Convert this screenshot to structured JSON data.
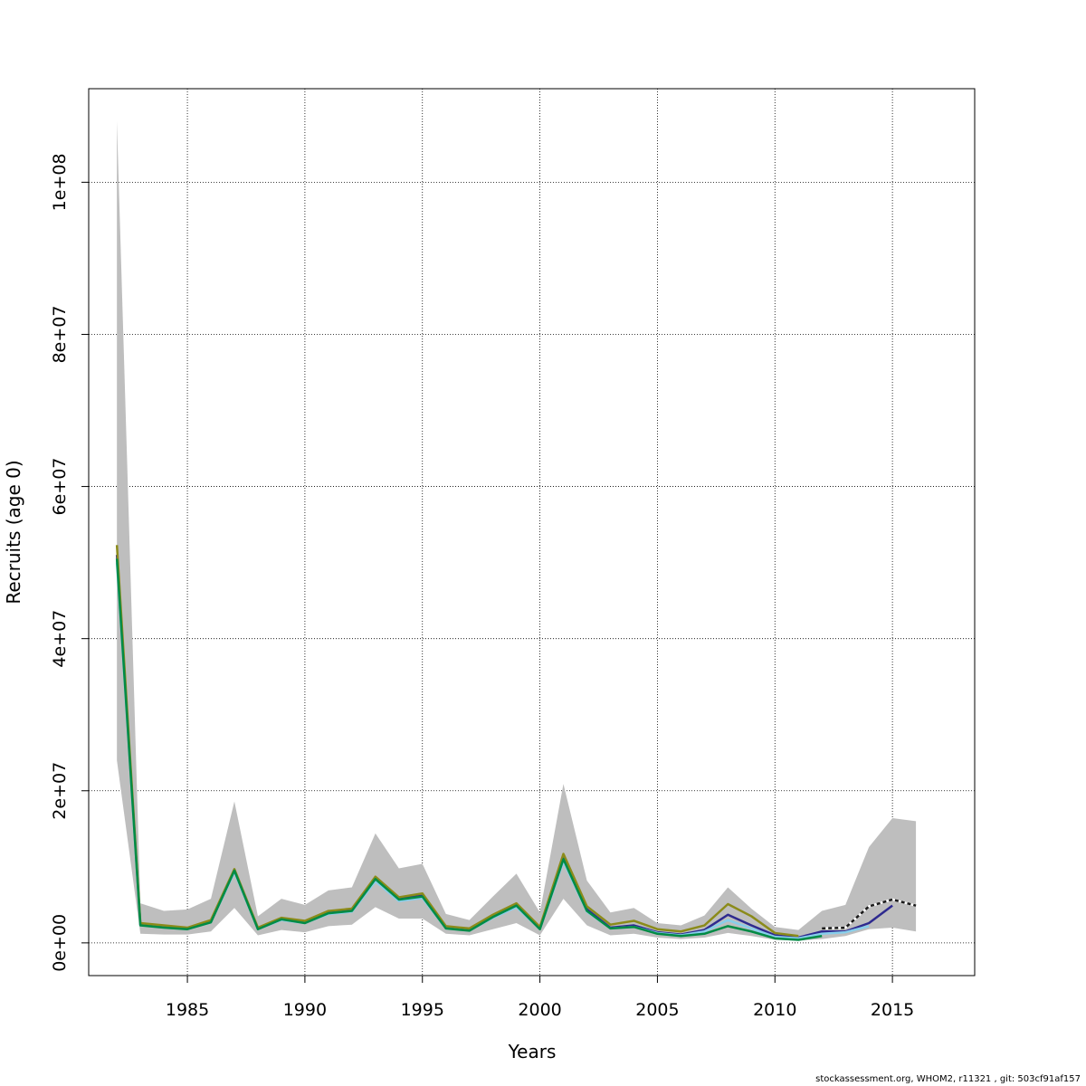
{
  "chart_data": {
    "type": "line",
    "title": "",
    "xlabel": "Years",
    "ylabel": "Recruits (age 0)",
    "xlim": [
      1980.8,
      2018.5
    ],
    "ylim": [
      -4300000,
      112300000
    ],
    "grid": true,
    "x_ticks": [
      1985,
      1990,
      1995,
      2000,
      2005,
      2010,
      2015
    ],
    "x_tick_labels": [
      "1985",
      "1990",
      "1995",
      "2000",
      "2005",
      "2010",
      "2015"
    ],
    "y_ticks": [
      0,
      20000000,
      40000000,
      60000000,
      80000000,
      100000000
    ],
    "y_tick_labels": [
      "0e+00",
      "2e+07",
      "4e+07",
      "6e+07",
      "8e+07",
      "1e+08"
    ],
    "confidence_band": {
      "color": "#bebebe",
      "x": [
        1982,
        1983,
        1984,
        1985,
        1986,
        1987,
        1988,
        1989,
        1990,
        1991,
        1992,
        1993,
        1994,
        1995,
        1996,
        1997,
        1998,
        1999,
        2000,
        2001,
        2002,
        2003,
        2004,
        2005,
        2006,
        2007,
        2008,
        2009,
        2010,
        2011,
        2012,
        2013,
        2014,
        2015,
        2016
      ],
      "upper": [
        108000000,
        5200000,
        4200000,
        4400000,
        5800000,
        18600000,
        3500000,
        5800000,
        5000000,
        6900000,
        7300000,
        14400000,
        9800000,
        10400000,
        3800000,
        3000000,
        6100000,
        9100000,
        4000000,
        20900000,
        8200000,
        4000000,
        4600000,
        2600000,
        2300000,
        3600000,
        7300000,
        4500000,
        2100000,
        1700000,
        4200000,
        5000000,
        12600000,
        16400000,
        16000000
      ],
      "lower": [
        24000000,
        1200000,
        1100000,
        1100000,
        1500000,
        4600000,
        1000000,
        1700000,
        1400000,
        2200000,
        2400000,
        4700000,
        3200000,
        3200000,
        1200000,
        1000000,
        1800000,
        2600000,
        1000000,
        5800000,
        2300000,
        1000000,
        1200000,
        700000,
        500000,
        700000,
        1300000,
        900000,
        400000,
        300000,
        500000,
        900000,
        1800000,
        2000000,
        1500000
      ]
    },
    "series": [
      {
        "color": "#2e2a8f",
        "dashed": false,
        "x": [
          1982,
          1983,
          1984,
          1985,
          1986,
          1987,
          1988,
          1989,
          1990,
          1991,
          1992,
          1993,
          1994,
          1995,
          1996,
          1997,
          1998,
          1999,
          2000,
          2001,
          2002,
          2003,
          2004,
          2005,
          2006,
          2007,
          2008,
          2009,
          2010,
          2011,
          2012,
          2013,
          2014,
          2015
        ],
        "values": [
          51000000,
          2400000,
          2100000,
          1900000,
          2800000,
          9600000,
          1900000,
          3200000,
          2700000,
          4000000,
          4300000,
          8500000,
          5800000,
          6200000,
          2000000,
          1700000,
          3500000,
          5000000,
          1900000,
          11100000,
          4400000,
          2000000,
          2300000,
          1400000,
          1100000,
          1700000,
          3700000,
          2300000,
          1000000,
          700000,
          1500000,
          1500000,
          2600000,
          4900000
        ]
      },
      {
        "color": "#87ceeb",
        "dashed": false,
        "x": [
          1982,
          1983,
          1984,
          1985,
          1986,
          1987,
          1988,
          1989,
          1990,
          1991,
          1992,
          1993,
          1994,
          1995,
          1996,
          1997,
          1998,
          1999,
          2000,
          2001,
          2002,
          2003,
          2004,
          2005,
          2006,
          2007,
          2008,
          2009,
          2010,
          2011,
          2012,
          2013,
          2014
        ],
        "values": [
          50000000,
          2300000,
          2000000,
          1800000,
          2700000,
          9300000,
          1800000,
          3000000,
          2600000,
          3800000,
          4100000,
          8100000,
          5500000,
          5900000,
          1900000,
          1600000,
          3300000,
          4700000,
          1800000,
          10700000,
          4100000,
          1900000,
          2100000,
          1300000,
          1000000,
          1500000,
          3000000,
          1900000,
          800000,
          600000,
          1200000,
          1400000,
          2200000
        ]
      },
      {
        "color": "#8b8b1a",
        "dashed": false,
        "x": [
          1982,
          1983,
          1984,
          1985,
          1986,
          1987,
          1988,
          1989,
          1990,
          1991,
          1992,
          1993,
          1994,
          1995,
          1996,
          1997,
          1998,
          1999,
          2000,
          2001,
          2002,
          2003,
          2004,
          2005,
          2006,
          2007,
          2008,
          2009,
          2010,
          2011
        ],
        "values": [
          52300000,
          2600000,
          2300000,
          2000000,
          3000000,
          9700000,
          2000000,
          3300000,
          2900000,
          4200000,
          4500000,
          8700000,
          6000000,
          6500000,
          2200000,
          1900000,
          3700000,
          5200000,
          2100000,
          11700000,
          4800000,
          2400000,
          2900000,
          1800000,
          1500000,
          2300000,
          5100000,
          3500000,
          1300000,
          900000
        ]
      },
      {
        "color": "#008b45",
        "dashed": false,
        "x": [
          1982,
          1983,
          1984,
          1985,
          1986,
          1987,
          1988,
          1989,
          1990,
          1991,
          1992,
          1993,
          1994,
          1995,
          1996,
          1997,
          1998,
          1999,
          2000,
          2001,
          2002,
          2003,
          2004,
          2005,
          2006,
          2007,
          2008,
          2009,
          2010,
          2011,
          2012
        ],
        "values": [
          50500000,
          2300000,
          2000000,
          1800000,
          2700000,
          9500000,
          1800000,
          3100000,
          2600000,
          3900000,
          4200000,
          8400000,
          5700000,
          6100000,
          1900000,
          1600000,
          3400000,
          4900000,
          1800000,
          11000000,
          4200000,
          1900000,
          2100000,
          1200000,
          900000,
          1200000,
          2200000,
          1500000,
          600000,
          400000,
          900000
        ]
      },
      {
        "color": "#1a1a1a",
        "dashed": true,
        "x": [
          2012,
          2013,
          2014,
          2015,
          2016
        ],
        "values": [
          1900000,
          2000000,
          4800000,
          5700000,
          4900000
        ]
      }
    ]
  },
  "footer": {
    "text": "stockassessment.org, WHOM2, r11321 , git: 503cf91af157"
  }
}
